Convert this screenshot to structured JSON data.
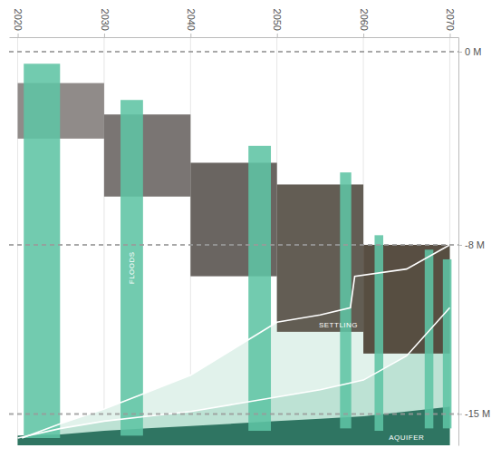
{
  "chart_data": {
    "type": "range_bar",
    "xlim": [
      2019,
      2071
    ],
    "xticks": [
      2020,
      2030,
      2040,
      2050,
      2060,
      2070
    ],
    "ylim": [
      0.6,
      -16.3
    ],
    "yticks": [
      {
        "value": 0,
        "label": "0 M"
      },
      {
        "value": -8,
        "label": "-8 M"
      },
      {
        "value": -15,
        "label": "-15 M"
      }
    ],
    "grid": true,
    "series": [
      {
        "type": "area",
        "color": "#e1f2eb",
        "line_style": "solid",
        "x": [
          2020.5,
          2025,
          2030,
          2035,
          2040,
          2045,
          2050,
          2055,
          2058.5,
          2059,
          2065,
          2070
        ],
        "values": [
          -16.0,
          -15.4,
          -14.8,
          -14.1,
          -13.4,
          -12.3,
          -11.2,
          -10.9,
          -10.6,
          -9.3,
          -9.0,
          -8.0
        ]
      },
      {
        "type": "area",
        "color": "#bde2d4",
        "line_style": "solid",
        "x": [
          2020,
          2025,
          2030,
          2035,
          2040,
          2045,
          2050,
          2055,
          2060,
          2065,
          2070
        ],
        "values": [
          -16.0,
          -15.6,
          -15.3,
          -15.1,
          -14.9,
          -14.6,
          -14.3,
          -14.0,
          -13.6,
          -12.6,
          -10.6
        ]
      },
      {
        "name": "SETTLING",
        "colors": [
          "#8a8583",
          "#736e6c",
          "#625d59",
          "#5b544b",
          "#4f4438"
        ],
        "x0": [
          2020,
          2030,
          2040,
          2050,
          2060
        ],
        "x1": [
          2030,
          2040,
          2050,
          2060,
          2070
        ],
        "values": [
          -1.3,
          -2.6,
          -4.6,
          -5.5,
          -8.0
        ],
        "bottoms": [
          -3.6,
          -6.0,
          -9.3,
          -11.6,
          -12.5
        ]
      },
      {
        "name": "AQUIFER",
        "type": "area",
        "color": "#2f7562",
        "x": [
          2020,
          2025,
          2030,
          2035,
          2040,
          2045,
          2050,
          2055,
          2060,
          2065,
          2070
        ],
        "values": [
          -15.9,
          -15.85,
          -15.7,
          -15.6,
          -15.5,
          -15.4,
          -15.3,
          -15.2,
          -15.1,
          -14.9,
          -14.7
        ]
      },
      {
        "name": "FLOODS",
        "color": "#5ec4a4",
        "x0": [
          2020.7,
          2031.9,
          2046.7,
          2057.3,
          2061.3,
          2067.1,
          2069.2
        ],
        "x1": [
          2024.9,
          2034.5,
          2049.3,
          2058.6,
          2062.3,
          2068.1,
          2070.2
        ],
        "values": [
          -0.5,
          -2.0,
          -3.9,
          -5.0,
          -7.6,
          -8.2,
          -8.6
        ],
        "bottoms": [
          -16.0,
          -15.9,
          -15.7,
          -15.6,
          -15.7,
          -15.6,
          -15.6
        ]
      }
    ]
  }
}
